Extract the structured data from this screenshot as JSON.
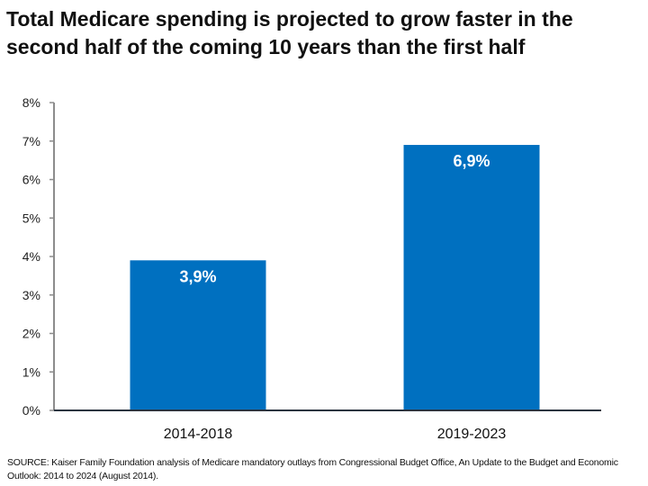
{
  "chart_data": {
    "type": "bar",
    "title": "Total Medicare spending is projected to grow faster in the second half of the coming 10 years than the first half",
    "categories": [
      "2014-2018",
      "2019-2023"
    ],
    "values": [
      3.9,
      6.9
    ],
    "data_labels": [
      "3,9%",
      "6,9%"
    ],
    "ylim": [
      0,
      8
    ],
    "yticks": [
      "0%",
      "1%",
      "2%",
      "3%",
      "4%",
      "5%",
      "6%",
      "7%",
      "8%"
    ],
    "xlabel": "",
    "ylabel": "",
    "grid": false,
    "bar_color": "#0070c0"
  },
  "source": "SOURCE: Kaiser Family Foundation analysis of Medicare mandatory outlays from Congressional Budget Office, An Update to the Budget and Economic Outlook: 2014 to 2024 (August 2014)."
}
